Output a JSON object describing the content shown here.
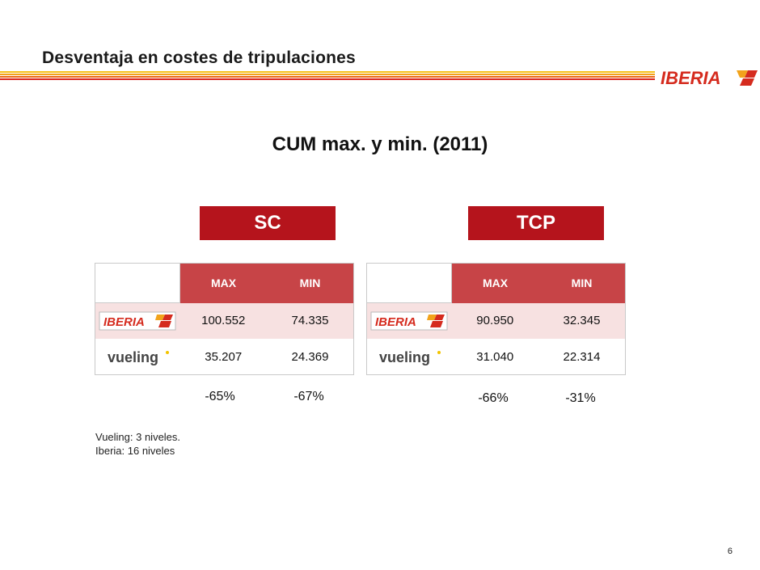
{
  "header": {
    "title": "Desventaja en costes de tripulaciones",
    "stripe_colors": [
      "#f7c21a",
      "#f2a31b",
      "#ea6a1a",
      "#d9261c",
      "#b5141c"
    ],
    "logo_text": "IBERIA",
    "brand_color": "#d52b1e"
  },
  "subtitle": "CUM max. y min. (2011)",
  "sections": [
    {
      "banner": "SC",
      "col_max": "MAX",
      "col_min": "MIN",
      "rows": [
        {
          "airline_logo": "IBERIA",
          "max": "100.552",
          "min": "74.335"
        },
        {
          "airline_logo": "vueling",
          "max": "35.207",
          "min": "24.369"
        }
      ],
      "diff_max": "-65%",
      "diff_min": "-67%"
    },
    {
      "banner": "TCP",
      "col_max": "MAX",
      "col_min": "MIN",
      "rows": [
        {
          "airline_logo": "IBERIA",
          "max": "90.950",
          "min": "32.345"
        },
        {
          "airline_logo": "vueling",
          "max": "31.040",
          "min": "22.314"
        }
      ],
      "diff_max": "-66%",
      "diff_min": "-31%"
    }
  ],
  "notes": {
    "line1": "Vueling: 3 niveles.",
    "line2": "Iberia: 16 niveles"
  },
  "page_number": "6"
}
